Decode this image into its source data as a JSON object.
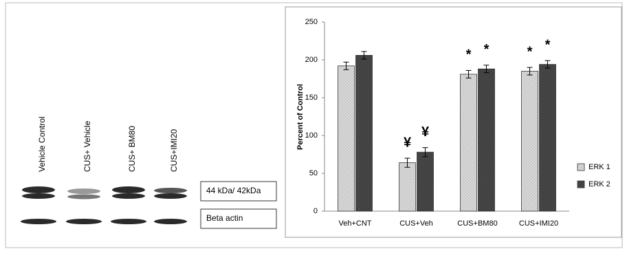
{
  "blot": {
    "lanes": [
      "Vehicle Control",
      "CUS+ Vehicle",
      "CUS+ BM80",
      "CUS+IMI20"
    ],
    "bands": [
      "44 kDa/ 42kDa",
      "Beta actin"
    ]
  },
  "chart_data": {
    "type": "bar",
    "y_label": "Percent of Control",
    "categories": [
      "Veh+CNT",
      "CUS+Veh",
      "CUS+BM80",
      "CUS+IMI20"
    ],
    "series": [
      {
        "name": "ERK 1",
        "color": "#c8c8c8",
        "values": [
          192,
          64,
          181,
          185
        ],
        "errors": [
          5,
          6,
          5,
          5
        ]
      },
      {
        "name": "ERK 2",
        "color": "#4a4a4a",
        "values": [
          206,
          78,
          188,
          194
        ],
        "errors": [
          5,
          6,
          5,
          5
        ]
      }
    ],
    "annotations": [
      {
        "text": "¥",
        "category": "CUS+Veh",
        "series": "ERK 1"
      },
      {
        "text": "¥",
        "category": "CUS+Veh",
        "series": "ERK 2"
      },
      {
        "text": "*",
        "category": "CUS+BM80",
        "series": "ERK 1"
      },
      {
        "text": "*",
        "category": "CUS+BM80",
        "series": "ERK 2"
      },
      {
        "text": "*",
        "category": "CUS+IMI20",
        "series": "ERK 1"
      },
      {
        "text": "*",
        "category": "CUS+IMI20",
        "series": "ERK 2"
      }
    ],
    "ylim": [
      0,
      250
    ],
    "yticks": [
      0,
      50,
      100,
      150,
      200,
      250
    ],
    "grid": false,
    "legend": "right"
  }
}
